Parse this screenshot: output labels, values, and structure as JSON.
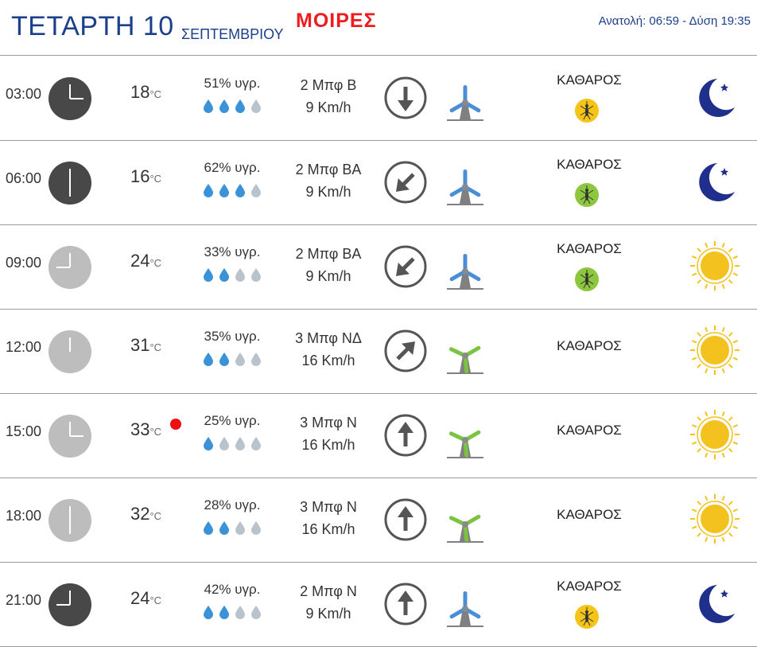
{
  "header": {
    "day": "ΤΕΤΑΡΤΗ 10",
    "month": "ΣΕΠΤΕΜΒΡΙΟΥ",
    "location": "ΜΟΙΡΕΣ",
    "sun_times": "Ανατολή: 06:59  - Δύση 19:35"
  },
  "colors": {
    "title_blue": "#1b3f8a",
    "location_red": "#ee1c1c",
    "drop_blue": "#3a93d9",
    "drop_grey": "#b9c3cc",
    "turbine_blue": "#4a8fd6",
    "turbine_green": "#7cc243",
    "mosquito_yellow": "#f5c419",
    "mosquito_green": "#8dc63f",
    "sun_yellow": "#f4c21e",
    "moon_navy": "#1f2f8c",
    "clock_dark": "#484848",
    "clock_light": "#bdbdbd"
  },
  "rows": [
    {
      "time": "03:00",
      "clock_hour": 3,
      "clock_theme": "dark",
      "temp": "18",
      "unit": "°C",
      "hot": false,
      "humidity": "51% υγρ.",
      "humidity_drops": 3,
      "wind_bft": "2 Μπφ Β",
      "wind_speed": "9 Km/h",
      "wind_arrow": "arrow-down",
      "turbine": "blue",
      "condition": "ΚΑΘΑΡΟΣ",
      "mosquito": "yellow",
      "sky": "moon"
    },
    {
      "time": "06:00",
      "clock_hour": 6,
      "clock_theme": "dark",
      "temp": "16",
      "unit": "°C",
      "hot": false,
      "humidity": "62% υγρ.",
      "humidity_drops": 3,
      "wind_bft": "2 Μπφ ΒΑ",
      "wind_speed": "9 Km/h",
      "wind_arrow": "arrow-down-left",
      "turbine": "blue",
      "condition": "ΚΑΘΑΡΟΣ",
      "mosquito": "green",
      "sky": "moon"
    },
    {
      "time": "09:00",
      "clock_hour": 9,
      "clock_theme": "light",
      "temp": "24",
      "unit": "°C",
      "hot": false,
      "humidity": "33% υγρ.",
      "humidity_drops": 2,
      "wind_bft": "2 Μπφ ΒΑ",
      "wind_speed": "9 Km/h",
      "wind_arrow": "arrow-down-left",
      "turbine": "blue",
      "condition": "ΚΑΘΑΡΟΣ",
      "mosquito": "green",
      "sky": "sun"
    },
    {
      "time": "12:00",
      "clock_hour": 12,
      "clock_theme": "light",
      "temp": "31",
      "unit": "°C",
      "hot": false,
      "humidity": "35% υγρ.",
      "humidity_drops": 2,
      "wind_bft": "3 Μπφ ΝΔ",
      "wind_speed": "16 Km/h",
      "wind_arrow": "arrow-up-right",
      "turbine": "green",
      "condition": "ΚΑΘΑΡΟΣ",
      "mosquito": null,
      "sky": "sun"
    },
    {
      "time": "15:00",
      "clock_hour": 3,
      "clock_theme": "light",
      "temp": "33",
      "unit": "°C",
      "hot": true,
      "humidity": "25% υγρ.",
      "humidity_drops": 1,
      "wind_bft": "3 Μπφ Ν",
      "wind_speed": "16 Km/h",
      "wind_arrow": "arrow-up",
      "turbine": "green",
      "condition": "ΚΑΘΑΡΟΣ",
      "mosquito": null,
      "sky": "sun"
    },
    {
      "time": "18:00",
      "clock_hour": 6,
      "clock_theme": "light",
      "temp": "32",
      "unit": "°C",
      "hot": false,
      "humidity": "28% υγρ.",
      "humidity_drops": 2,
      "wind_bft": "3 Μπφ Ν",
      "wind_speed": "16 Km/h",
      "wind_arrow": "arrow-up",
      "turbine": "green",
      "condition": "ΚΑΘΑΡΟΣ",
      "mosquito": null,
      "sky": "sun"
    },
    {
      "time": "21:00",
      "clock_hour": 9,
      "clock_theme": "dark",
      "temp": "24",
      "unit": "°C",
      "hot": false,
      "humidity": "42% υγρ.",
      "humidity_drops": 2,
      "wind_bft": "2 Μπφ Ν",
      "wind_speed": "9 Km/h",
      "wind_arrow": "arrow-up",
      "turbine": "blue",
      "condition": "ΚΑΘΑΡΟΣ",
      "mosquito": "yellow",
      "sky": "moon"
    }
  ]
}
